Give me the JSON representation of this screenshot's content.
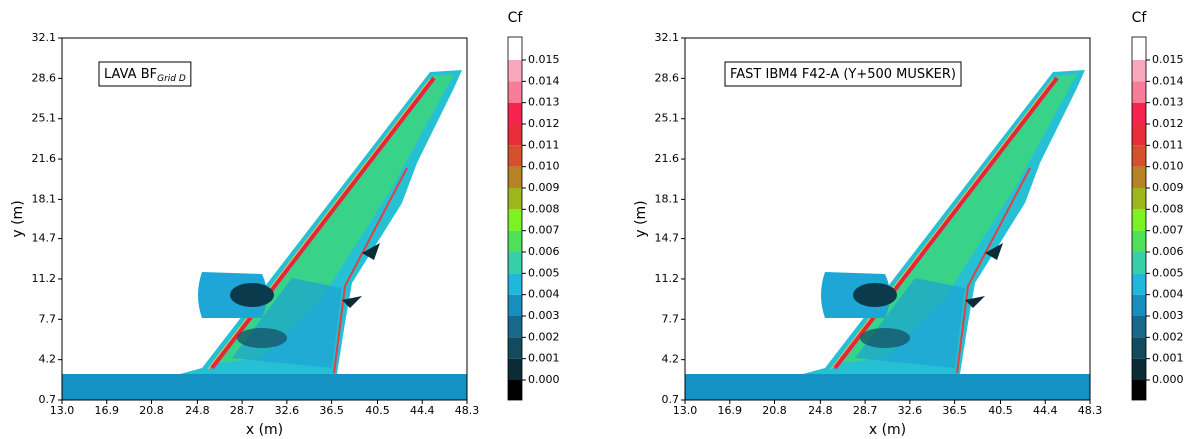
{
  "chart_data": [
    {
      "type": "contour",
      "annotation": {
        "text": "LAVA BF",
        "subscript": "Grid D"
      },
      "xlabel": "x (m)",
      "ylabel": "y (m)",
      "xlim": [
        13.0,
        48.3
      ],
      "ylim": [
        0.7,
        32.1
      ],
      "xticks": [
        {
          "value": 13.0,
          "label": "13.0"
        },
        16.9,
        20.8,
        24.8,
        28.7,
        32.6,
        36.5,
        40.5,
        44.4,
        48.3
      ],
      "yticks": [
        0.7,
        4.2,
        7.7,
        11.2,
        14.7,
        18.1,
        21.6,
        25.1,
        28.6,
        32.1
      ],
      "colorbar": {
        "title": "Cf",
        "ticks": [
          {
            "value": 0,
            "label": "0.000"
          },
          {
            "value": 0.001,
            "label": "0.001"
          },
          {
            "value": 0.002,
            "label": "0.002"
          },
          {
            "value": 0.003,
            "label": "0.003"
          },
          {
            "value": 0.004,
            "label": "0.004"
          },
          {
            "value": 0.005,
            "label": "0.005"
          },
          {
            "value": 0.006,
            "label": "0.006"
          },
          {
            "value": 0.007,
            "label": "0.007"
          },
          {
            "value": 0.008,
            "label": "0.008"
          },
          {
            "value": 0.009,
            "label": "0.009"
          },
          {
            "value": 0.01,
            "label": "0.010"
          },
          {
            "value": 0.011,
            "label": "0.011"
          },
          {
            "value": 0.012,
            "label": "0.012"
          },
          {
            "value": 0.013,
            "label": "0.013"
          },
          {
            "value": 0.014,
            "label": "0.014"
          },
          {
            "value": 0.015,
            "label": "0.015"
          }
        ],
        "colors": [
          "#000000",
          "#0b2b36",
          "#124a5e",
          "#17688a",
          "#1a8fbf",
          "#1fb8dc",
          "#35cfa8",
          "#4fe05a",
          "#7cf21e",
          "#9cb81a",
          "#b58224",
          "#d4502e",
          "#ea2d3a",
          "#f6234f",
          "#f67c98",
          "#f8a8bb",
          "#ffffff"
        ]
      }
    },
    {
      "type": "contour",
      "annotation": {
        "text": "FAST IBM4 F42-A (Y+500 MUSKER)"
      },
      "xlabel": "x (m)",
      "ylabel": "y (m)",
      "xlim": [
        13.0,
        48.3
      ],
      "ylim": [
        0.7,
        32.1
      ],
      "xticks": [
        {
          "value": 13.0,
          "label": "13.0"
        },
        16.9,
        20.8,
        24.8,
        28.7,
        32.6,
        36.5,
        40.5,
        44.4,
        48.3
      ],
      "yticks": [
        0.7,
        4.2,
        7.7,
        11.2,
        14.7,
        18.1,
        21.6,
        25.1,
        28.6,
        32.1
      ],
      "colorbar": {
        "title": "Cf",
        "ticks": [
          {
            "value": 0,
            "label": "0.000"
          },
          {
            "value": 0.001,
            "label": "0.001"
          },
          {
            "value": 0.002,
            "label": "0.002"
          },
          {
            "value": 0.003,
            "label": "0.003"
          },
          {
            "value": 0.004,
            "label": "0.004"
          },
          {
            "value": 0.005,
            "label": "0.005"
          },
          {
            "value": 0.006,
            "label": "0.006"
          },
          {
            "value": 0.007,
            "label": "0.007"
          },
          {
            "value": 0.008,
            "label": "0.008"
          },
          {
            "value": 0.009,
            "label": "0.009"
          },
          {
            "value": 0.01,
            "label": "0.010"
          },
          {
            "value": 0.011,
            "label": "0.011"
          },
          {
            "value": 0.012,
            "label": "0.012"
          },
          {
            "value": 0.013,
            "label": "0.013"
          },
          {
            "value": 0.014,
            "label": "0.014"
          },
          {
            "value": 0.015,
            "label": "0.015"
          }
        ],
        "colors": [
          "#000000",
          "#0b2b36",
          "#124a5e",
          "#17688a",
          "#1a8fbf",
          "#1fb8dc",
          "#35cfa8",
          "#4fe05a",
          "#7cf21e",
          "#9cb81a",
          "#b58224",
          "#d4502e",
          "#ea2d3a",
          "#f6234f",
          "#f67c98",
          "#f8a8bb",
          "#ffffff"
        ]
      }
    }
  ]
}
